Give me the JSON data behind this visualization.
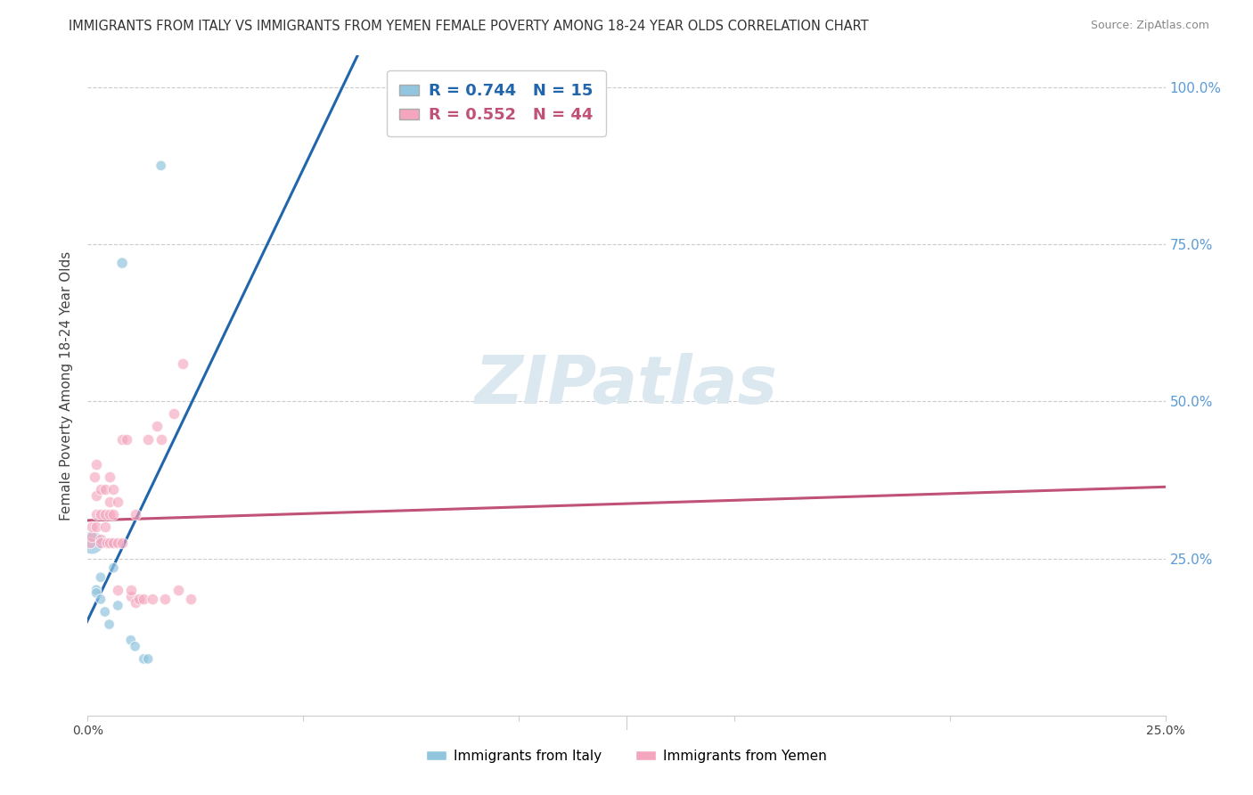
{
  "title": "IMMIGRANTS FROM ITALY VS IMMIGRANTS FROM YEMEN FEMALE POVERTY AMONG 18-24 YEAR OLDS CORRELATION CHART",
  "source": "Source: ZipAtlas.com",
  "ylabel": "Female Poverty Among 18-24 Year Olds",
  "legend_italy": "Immigrants from Italy",
  "legend_yemen": "Immigrants from Yemen",
  "R_italy": "0.744",
  "N_italy": "15",
  "R_yemen": "0.552",
  "N_yemen": "44",
  "color_italy": "#92c5de",
  "color_yemen": "#f4a6be",
  "line_color_italy": "#2166ac",
  "line_color_yemen": "#c0527a",
  "watermark_color": "#dce8f0",
  "xlim": [
    0,
    0.25
  ],
  "ylim": [
    0,
    1.05
  ],
  "ytick_positions": [
    0.25,
    0.5,
    0.75,
    1.0
  ],
  "ytick_labels": [
    "25.0%",
    "50.0%",
    "75.0%",
    "100.0%"
  ],
  "italy_x": [
    0.001,
    0.002,
    0.002,
    0.003,
    0.003,
    0.004,
    0.005,
    0.006,
    0.007,
    0.008,
    0.01,
    0.011,
    0.013,
    0.014,
    0.017
  ],
  "italy_y": [
    0.275,
    0.2,
    0.195,
    0.185,
    0.22,
    0.165,
    0.145,
    0.235,
    0.175,
    0.72,
    0.12,
    0.11,
    0.09,
    0.09,
    0.875
  ],
  "italy_size": [
    350,
    70,
    70,
    70,
    70,
    70,
    70,
    70,
    70,
    80,
    70,
    70,
    70,
    70,
    70
  ],
  "yemen_x": [
    0.0005,
    0.001,
    0.001,
    0.0015,
    0.002,
    0.002,
    0.002,
    0.002,
    0.003,
    0.003,
    0.003,
    0.003,
    0.004,
    0.004,
    0.004,
    0.0045,
    0.005,
    0.005,
    0.005,
    0.005,
    0.006,
    0.006,
    0.006,
    0.007,
    0.007,
    0.007,
    0.008,
    0.008,
    0.009,
    0.01,
    0.01,
    0.011,
    0.011,
    0.012,
    0.013,
    0.014,
    0.015,
    0.016,
    0.017,
    0.018,
    0.02,
    0.021,
    0.022,
    0.024
  ],
  "yemen_y": [
    0.275,
    0.285,
    0.3,
    0.38,
    0.32,
    0.3,
    0.4,
    0.35,
    0.28,
    0.32,
    0.36,
    0.275,
    0.3,
    0.32,
    0.36,
    0.275,
    0.32,
    0.34,
    0.38,
    0.275,
    0.32,
    0.36,
    0.275,
    0.34,
    0.275,
    0.2,
    0.44,
    0.275,
    0.44,
    0.19,
    0.2,
    0.18,
    0.32,
    0.185,
    0.185,
    0.44,
    0.185,
    0.46,
    0.44,
    0.185,
    0.48,
    0.2,
    0.56,
    0.185
  ]
}
